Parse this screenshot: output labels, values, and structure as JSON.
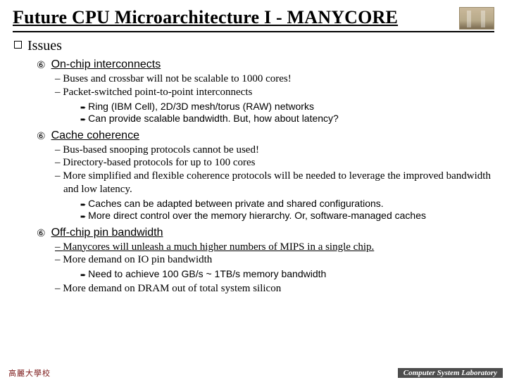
{
  "title": "Future CPU Microarchitecture I - MANYCORE",
  "section": "Issues",
  "topics": [
    {
      "num": "⑥",
      "label": "On-chip interconnects",
      "dashes": [
        {
          "text": "Buses and crossbar will not be scalable to 1000 cores!",
          "u": false
        },
        {
          "text": "Packet-switched point-to-point interconnects",
          "u": false
        }
      ],
      "arrows": [
        "Ring (IBM Cell), 2D/3D mesh/torus (RAW) networks",
        "Can provide scalable bandwidth. But, how about latency?"
      ],
      "dashes2": []
    },
    {
      "num": "⑥",
      "label": "Cache coherence",
      "dashes": [
        {
          "text": "Bus-based snooping protocols cannot be used!",
          "u": false
        },
        {
          "text": "Directory-based protocols for up to 100 cores",
          "u": false
        },
        {
          "text": "More simplified and flexible coherence protocols will be needed to leverage the improved bandwidth and low latency.",
          "u": false
        }
      ],
      "arrows": [
        "Caches can be adapted between private and shared configurations.",
        "More direct control over the memory hierarchy. Or, software-managed caches"
      ],
      "dashes2": []
    },
    {
      "num": "⑥",
      "label": "Off-chip pin bandwidth",
      "dashes": [
        {
          "text": "Manycores will unleash a much higher numbers of MIPS in a single chip.",
          "u": true
        },
        {
          "text": "More demand on IO pin bandwidth",
          "u": false
        }
      ],
      "arrows": [
        "Need to achieve 100 GB/s ~ 1TB/s memory bandwidth"
      ],
      "dashes2": [
        {
          "text": "More demand on DRAM out of total system silicon",
          "u": false
        }
      ]
    }
  ],
  "footer": {
    "left": "高麗大學校",
    "right": "Computer System Laboratory"
  },
  "colors": {
    "text": "#000000",
    "bg": "#ffffff",
    "footer_bg": "#4d4d4d",
    "footer_left": "#7a1616"
  }
}
